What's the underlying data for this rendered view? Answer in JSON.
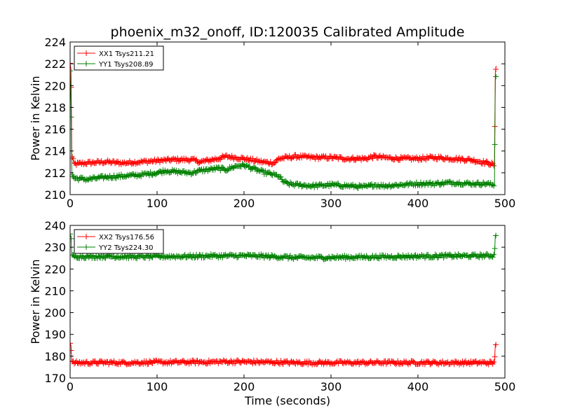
{
  "figure": {
    "title": "phoenix_m32_onoff, ID:120035 Calibrated Amplitude",
    "xlabel": "Time (seconds)"
  },
  "colors": {
    "series_xx": "#ff0000",
    "series_yy": "#008000",
    "axes": "#000000",
    "background": "#ffffff"
  },
  "chart_data": [
    {
      "type": "line",
      "title": "phoenix_m32_onoff, ID:120035 Calibrated Amplitude",
      "xlabel": "",
      "ylabel": "Power in Kelvin",
      "xlim": [
        0,
        500
      ],
      "ylim": [
        210,
        224
      ],
      "x_ticks": [
        0,
        100,
        200,
        300,
        400,
        500
      ],
      "y_ticks": [
        210,
        212,
        214,
        216,
        218,
        220,
        222,
        224
      ],
      "grid": false,
      "legend_position": "top-left",
      "marker": "+",
      "series": [
        {
          "name": "XX1 Tsys211.21",
          "color": "#ff0000",
          "x": [
            0,
            1,
            2,
            5,
            20,
            40,
            60,
            80,
            100,
            120,
            140,
            150,
            170,
            180,
            200,
            220,
            235,
            240,
            260,
            280,
            300,
            320,
            340,
            350,
            360,
            380,
            400,
            420,
            440,
            460,
            480,
            485,
            487,
            488,
            489,
            490
          ],
          "y": [
            222,
            221.5,
            213.5,
            212.8,
            212.9,
            213.0,
            212.9,
            213.0,
            213.1,
            213.2,
            213.2,
            213.0,
            213.3,
            213.5,
            213.3,
            213.0,
            212.9,
            213.3,
            213.5,
            213.4,
            213.4,
            213.3,
            213.3,
            213.5,
            213.4,
            213.3,
            213.3,
            213.4,
            213.3,
            213.2,
            212.9,
            212.8,
            212.7,
            212.7,
            221.2,
            221.8
          ]
        },
        {
          "name": "YY1 Tsys208.89",
          "color": "#008000",
          "x": [
            0,
            1,
            2,
            5,
            20,
            40,
            60,
            80,
            100,
            110,
            120,
            140,
            150,
            160,
            170,
            180,
            190,
            200,
            210,
            220,
            230,
            240,
            245,
            250,
            260,
            280,
            300,
            320,
            340,
            350,
            360,
            380,
            400,
            420,
            440,
            460,
            480,
            485,
            487,
            488,
            489,
            490
          ],
          "y": [
            221.5,
            218.5,
            211.8,
            211.5,
            211.4,
            211.6,
            211.7,
            211.8,
            212.0,
            212.2,
            212.1,
            212.0,
            212.2,
            212.3,
            212.4,
            212.3,
            212.6,
            212.7,
            212.4,
            212.1,
            211.9,
            211.7,
            211.2,
            211.0,
            210.9,
            210.8,
            210.9,
            210.8,
            210.7,
            210.9,
            210.8,
            210.9,
            211.0,
            211.0,
            211.1,
            211.0,
            211.0,
            210.9,
            210.9,
            210.8,
            220.6,
            221.0
          ]
        }
      ]
    },
    {
      "type": "line",
      "title": "",
      "xlabel": "Time (seconds)",
      "ylabel": "Power in Kelvin",
      "xlim": [
        0,
        500
      ],
      "ylim": [
        170,
        240
      ],
      "x_ticks": [
        0,
        100,
        200,
        300,
        400,
        500
      ],
      "y_ticks": [
        170,
        180,
        190,
        200,
        210,
        220,
        230,
        240
      ],
      "grid": false,
      "legend_position": "top-left",
      "marker": "+",
      "series": [
        {
          "name": "XX2 Tsys176.56",
          "color": "#ff0000",
          "x": [
            0,
            1,
            2,
            5,
            20,
            40,
            60,
            80,
            100,
            120,
            140,
            160,
            180,
            200,
            220,
            240,
            260,
            280,
            300,
            320,
            340,
            360,
            380,
            400,
            420,
            440,
            460,
            480,
            485,
            487,
            488,
            489,
            490
          ],
          "y": [
            186,
            185,
            177.2,
            177.0,
            177.0,
            177.1,
            177.0,
            177.1,
            177.2,
            177.2,
            177.3,
            177.3,
            177.5,
            177.4,
            177.3,
            177.2,
            177.0,
            177.0,
            177.0,
            177.0,
            177.0,
            177.1,
            177.0,
            177.1,
            177.0,
            177.0,
            177.0,
            177.0,
            176.9,
            176.8,
            176.8,
            185.5,
            186
          ]
        },
        {
          "name": "YY2 Tsys224.30",
          "color": "#008000",
          "x": [
            0,
            1,
            2,
            5,
            20,
            40,
            60,
            80,
            100,
            120,
            140,
            160,
            180,
            200,
            220,
            240,
            260,
            280,
            300,
            320,
            340,
            360,
            380,
            400,
            420,
            440,
            460,
            480,
            485,
            487,
            488,
            489,
            490
          ],
          "y": [
            236,
            235,
            226.0,
            225.8,
            225.7,
            225.8,
            225.7,
            225.6,
            225.7,
            225.8,
            225.8,
            226.0,
            226.0,
            226.1,
            225.9,
            225.6,
            225.2,
            225.2,
            225.3,
            225.4,
            225.5,
            225.6,
            225.7,
            225.8,
            225.9,
            226.0,
            226.0,
            226.1,
            226.1,
            226.2,
            226.2,
            235.5,
            236
          ]
        }
      ]
    }
  ]
}
